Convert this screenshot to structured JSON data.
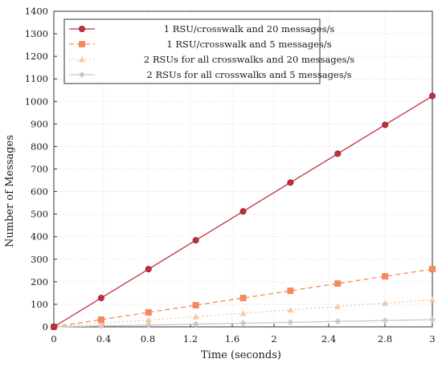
{
  "chart_data": {
    "type": "line",
    "xlabel": "Time (seconds)",
    "ylabel": "Number of Messages",
    "xlim": [
      0,
      3
    ],
    "ylim": [
      0,
      1400
    ],
    "x_ticks": [
      {
        "value": 0,
        "label": "0"
      },
      {
        "value": 0.4,
        "label": "0.4"
      },
      {
        "value": 0.8,
        "label": "0.8"
      },
      {
        "value": 1.2,
        "label": "1.2"
      },
      {
        "value": 1.6,
        "label": "1.6"
      },
      {
        "value": 2.0,
        "label": "2"
      },
      {
        "value": 2.4,
        "label": "2.4"
      },
      {
        "value": 2.8,
        "label": "2.8"
      },
      {
        "value": 3.0,
        "label": "3"
      }
    ],
    "y_ticks": [
      0,
      100,
      200,
      300,
      400,
      500,
      600,
      700,
      800,
      900,
      1000,
      1100,
      1200,
      1300,
      1400
    ],
    "grid": true,
    "legend_position": "top-left",
    "series": [
      {
        "name": "1 RSU/crosswalk and 20 messages/s",
        "color": "#c0303e",
        "dash": "solid",
        "marker": "circle",
        "x": [
          0,
          0.4,
          0.8,
          1.2,
          1.6,
          2.0,
          2.4,
          2.8,
          3.2
        ],
        "y": [
          0,
          128,
          256,
          384,
          512,
          640,
          768,
          896,
          1024
        ]
      },
      {
        "name": "1 RSU/crosswalk and 5 messages/s",
        "color": "#f28a5e",
        "dash": "dashed",
        "marker": "square",
        "x": [
          0,
          0.4,
          0.8,
          1.2,
          1.6,
          2.0,
          2.4,
          2.8,
          3.2
        ],
        "y": [
          0,
          32,
          64,
          96,
          128,
          160,
          192,
          224,
          256
        ]
      },
      {
        "name": "2 RSUs for all crosswalks and 20 messages/s",
        "color": "#f7c79f",
        "dash": "dotted",
        "marker": "triangle",
        "x": [
          0,
          0.4,
          0.8,
          1.2,
          1.6,
          2.0,
          2.4,
          2.8,
          3.2
        ],
        "y": [
          0,
          15,
          30,
          45,
          60,
          75,
          90,
          105,
          120
        ]
      },
      {
        "name": "2 RSUs for all crosswalks and 5 messages/s",
        "color": "#c9c9c9",
        "dash": "solid",
        "marker": "diamond",
        "x": [
          0,
          0.4,
          0.8,
          1.2,
          1.6,
          2.0,
          2.4,
          2.8,
          3.2
        ],
        "y": [
          0,
          4,
          8,
          12,
          16,
          20,
          24,
          28,
          32
        ]
      }
    ]
  }
}
